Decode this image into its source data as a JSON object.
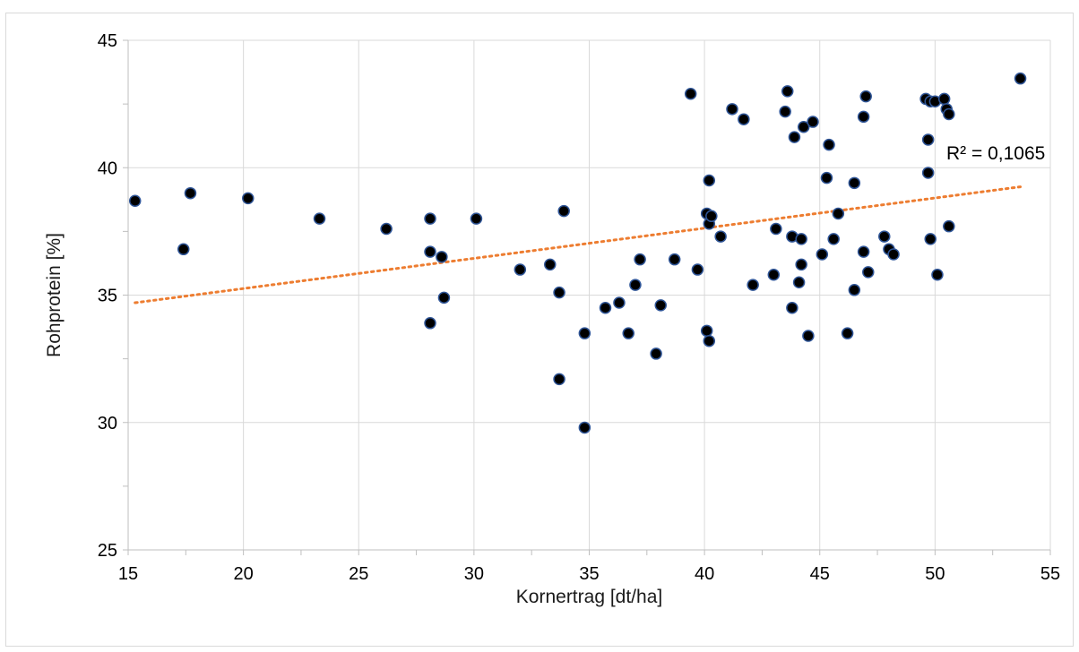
{
  "chart_data": {
    "type": "scatter",
    "title": "",
    "xlabel": "Kornertrag [dt/ha]",
    "ylabel": "Rohprotein [%]",
    "xlim": [
      15,
      55
    ],
    "ylim": [
      25,
      45
    ],
    "xticks": [
      15,
      20,
      25,
      30,
      35,
      40,
      45,
      50,
      55
    ],
    "yticks": [
      25,
      30,
      35,
      40,
      45
    ],
    "xtick_labels": [
      "15",
      "20",
      "25",
      "30",
      "35",
      "40",
      "45",
      "50",
      "55"
    ],
    "ytick_labels": [
      "25",
      "30",
      "35",
      "40",
      "45"
    ],
    "grid": true,
    "legend": "none",
    "colors": {
      "marker_fill": "#000000",
      "marker_edge": "#2f5597",
      "trendline": "#ed7d31",
      "grid": "#d9d9d9"
    },
    "trendline": {
      "type": "linear",
      "x": [
        15.3,
        53.7
      ],
      "y": [
        34.7,
        39.25
      ],
      "r2_label": "R² = 0,1065"
    },
    "x": [
      15.3,
      17.4,
      17.7,
      20.2,
      23.3,
      26.2,
      28.1,
      28.1,
      28.1,
      28.6,
      28.7,
      30.1,
      32.0,
      33.3,
      33.7,
      33.7,
      33.9,
      34.8,
      34.8,
      35.7,
      36.3,
      36.7,
      37.0,
      37.2,
      37.9,
      38.1,
      38.7,
      39.4,
      39.7,
      40.1,
      40.1,
      40.2,
      40.2,
      40.2,
      40.3,
      40.7,
      41.2,
      41.7,
      42.1,
      43.0,
      43.1,
      43.5,
      43.6,
      43.8,
      43.8,
      43.9,
      44.1,
      44.2,
      44.2,
      44.3,
      44.5,
      44.7,
      45.1,
      45.3,
      45.4,
      45.6,
      45.8,
      46.2,
      46.5,
      46.5,
      46.9,
      46.9,
      47.0,
      47.1,
      47.8,
      48.0,
      48.2,
      49.6,
      49.7,
      49.7,
      49.8,
      49.8,
      50.0,
      50.1,
      50.4,
      50.5,
      50.6,
      50.6,
      53.7
    ],
    "y": [
      38.7,
      36.8,
      39.0,
      38.8,
      38.0,
      37.6,
      33.9,
      36.7,
      38.0,
      36.5,
      34.9,
      38.0,
      36.0,
      36.2,
      35.1,
      31.7,
      38.3,
      33.5,
      29.8,
      34.5,
      34.7,
      33.5,
      35.4,
      36.4,
      32.7,
      34.6,
      36.4,
      42.9,
      36.0,
      38.2,
      33.6,
      33.2,
      37.8,
      39.5,
      38.1,
      37.3,
      42.3,
      41.9,
      35.4,
      35.8,
      37.6,
      42.2,
      43.0,
      34.5,
      37.3,
      41.2,
      35.5,
      36.2,
      37.2,
      41.6,
      33.4,
      41.8,
      36.6,
      39.6,
      40.9,
      37.2,
      38.2,
      33.5,
      35.2,
      39.4,
      36.7,
      42.0,
      42.8,
      35.9,
      37.3,
      36.8,
      36.6,
      42.7,
      41.1,
      39.8,
      37.2,
      42.6,
      42.6,
      35.8,
      42.7,
      42.3,
      42.1,
      37.7,
      43.5
    ]
  }
}
